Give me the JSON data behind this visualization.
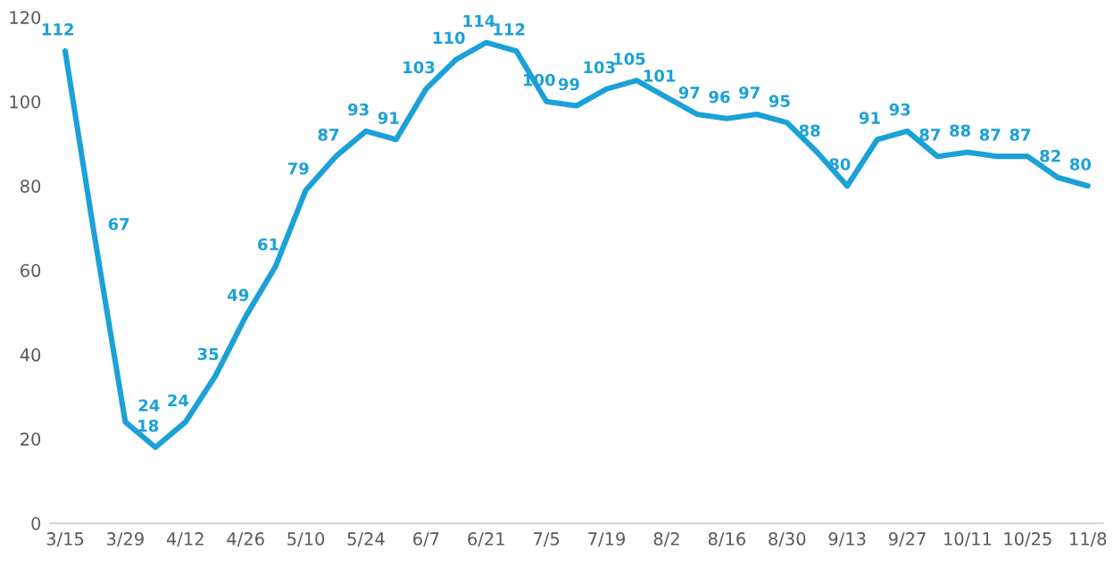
{
  "chart_data": {
    "type": "line",
    "categories": [
      "3/15",
      null,
      "3/29",
      null,
      "4/12",
      null,
      "4/26",
      null,
      "5/10",
      null,
      "5/24",
      null,
      "6/7",
      null,
      "6/21",
      null,
      "7/5",
      null,
      "7/19",
      null,
      "8/2",
      null,
      "8/16",
      null,
      "8/30",
      null,
      "9/13",
      null,
      "9/27",
      null,
      "10/11",
      null,
      "10/25",
      null,
      "11/8"
    ],
    "series": [
      {
        "color": "#1ba1d8",
        "values": [
          112,
          67,
          24,
          18,
          24,
          35,
          49,
          61,
          79,
          87,
          93,
          91,
          103,
          110,
          114,
          112,
          100,
          99,
          103,
          105,
          101,
          97,
          96,
          97,
          95,
          88,
          80,
          91,
          93,
          87,
          88,
          87,
          87,
          82,
          80
        ]
      }
    ],
    "ylim": [
      0,
      120
    ],
    "yticks": [
      0,
      20,
      40,
      60,
      80,
      100,
      120
    ],
    "grid": false,
    "legend": false,
    "data_labels": true,
    "marker": "none",
    "line_style": "solid"
  }
}
